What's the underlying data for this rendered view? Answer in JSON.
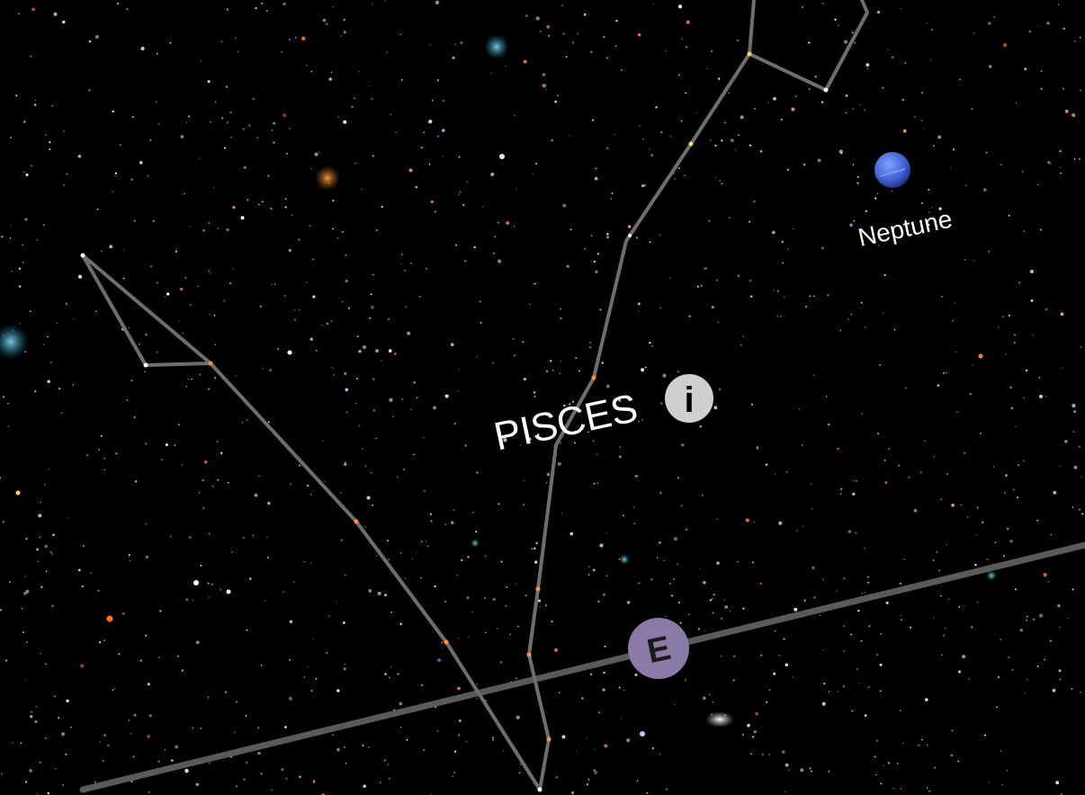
{
  "scene": {
    "background_color": "#000000",
    "constellation_line_color": "#6e6e6e",
    "horizon_line_color": "#5a5a5a"
  },
  "constellation": {
    "name": "PISCES",
    "info_icon": "info-icon",
    "info_glyph": "i",
    "info_color": "#cfcfcf"
  },
  "planet": {
    "name": "Neptune",
    "color": "#3f63d6"
  },
  "compass": {
    "direction": "E",
    "color": "#8a7aa8"
  }
}
